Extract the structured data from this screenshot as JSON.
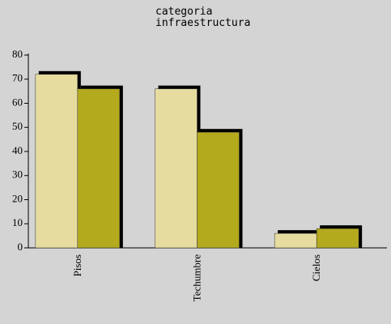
{
  "chart_data": {
    "type": "bar",
    "title_lines": [
      "categoria",
      "infraestructura"
    ],
    "categories": [
      "Pisos",
      "Techumbre",
      "Cielos"
    ],
    "series": [
      {
        "color": "#e6dca0",
        "values": [
          72,
          66,
          6
        ]
      },
      {
        "color": "#b4aa1e",
        "values": [
          66,
          48,
          8
        ]
      }
    ],
    "ylim": [
      0,
      80
    ],
    "yticks": [
      0,
      10,
      20,
      30,
      40,
      50,
      60,
      70,
      80
    ]
  }
}
